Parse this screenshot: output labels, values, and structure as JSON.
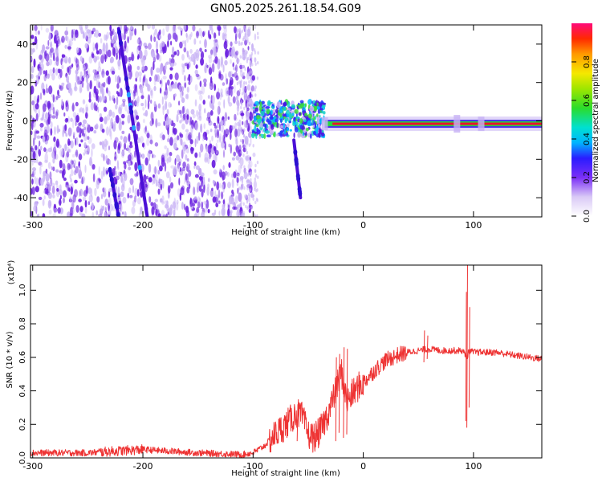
{
  "title": "GN05.2025.261.18.54.G09",
  "colors": {
    "spectrogram_main": "#6a1fe0",
    "spectrogram_faint": "#c9b4f5",
    "signal_line_core": "#e8132b",
    "signal_line_green": "#27d640",
    "snr_line": "#ee3333"
  },
  "chart_data": [
    {
      "type": "heatmap",
      "name": "spectrogram",
      "xlabel": "Height of straight line (km)",
      "ylabel": "Frequency (Hz)",
      "xlim": [
        -302,
        162
      ],
      "ylim": [
        -50,
        50
      ],
      "xticks": [
        -300,
        -200,
        -100,
        0,
        100
      ],
      "yticks": [
        -40,
        -20,
        0,
        20,
        40
      ],
      "colorbar": {
        "label": "Normalized spectral amplitude",
        "range": [
          0,
          1
        ],
        "ticks": [
          "0.0",
          "0.2",
          "0.4",
          "0.6",
          "0.8"
        ],
        "tick_values": [
          0.0,
          0.2,
          0.4,
          0.6,
          0.8
        ]
      },
      "features": [
        {
          "name": "noise-region",
          "x_range": [
            -302,
            -98
          ],
          "freq_range": [
            -50,
            50
          ],
          "amplitude": 0.15
        },
        {
          "name": "diagonal-track-main",
          "from": [
            -222,
            48
          ],
          "to": [
            -196,
            -50
          ],
          "amplitude": 0.25
        },
        {
          "name": "diagonal-track-secondary",
          "from": [
            -230,
            -25
          ],
          "to": [
            -222,
            -50
          ],
          "amplitude": 0.2
        },
        {
          "name": "short-track",
          "from": [
            -63,
            -10
          ],
          "to": [
            -57,
            -40
          ],
          "amplitude": 0.2
        },
        {
          "name": "onset-burst",
          "x_range": [
            -100,
            -35
          ],
          "freq_range": [
            -8,
            10
          ],
          "amplitude": 0.35
        },
        {
          "name": "signal-line",
          "x_range": [
            -35,
            162
          ],
          "frequency": -1.5,
          "amplitude": 0.9
        }
      ]
    },
    {
      "type": "line",
      "name": "snr",
      "xlabel": "Height of straight line (km)",
      "ylabel": "SNR (10 * v/v)",
      "yscale_label": "(x10⁴)",
      "xlim": [
        -302,
        162
      ],
      "ylim": [
        0,
        1.15
      ],
      "xticks": [
        -300,
        -200,
        -100,
        0,
        100
      ],
      "yticks": [
        0.0,
        0.2,
        0.4,
        0.6,
        0.8,
        1.0
      ],
      "ytick_labels": [
        "0.0",
        "0.2",
        "0.4",
        "0.6",
        "0.8",
        "1.0"
      ],
      "series": [
        {
          "name": "SNR",
          "x": [
            -302,
            -250,
            -200,
            -150,
            -110,
            -100,
            -90,
            -80,
            -70,
            -60,
            -55,
            -50,
            -45,
            -40,
            -35,
            -30,
            -25,
            -20,
            -15,
            -10,
            -5,
            0,
            10,
            20,
            30,
            40,
            50,
            60,
            70,
            80,
            90,
            94,
            96,
            100,
            110,
            120,
            140,
            162
          ],
          "values": [
            0.03,
            0.03,
            0.05,
            0.03,
            0.02,
            0.03,
            0.07,
            0.14,
            0.2,
            0.27,
            0.24,
            0.14,
            0.12,
            0.15,
            0.22,
            0.3,
            0.4,
            0.52,
            0.33,
            0.38,
            0.42,
            0.45,
            0.52,
            0.58,
            0.61,
            0.63,
            0.64,
            0.65,
            0.64,
            0.64,
            0.64,
            0.6,
            0.64,
            0.63,
            0.63,
            0.63,
            0.61,
            0.59
          ]
        }
      ],
      "spikes": [
        {
          "x": -60,
          "peak": 0.32,
          "trough": 0.1
        },
        {
          "x": -40,
          "peak": 0.21,
          "trough": 0.08
        },
        {
          "x": -25,
          "peak": 0.6,
          "trough": 0.1
        },
        {
          "x": -22,
          "peak": 0.62,
          "trough": 0.15
        },
        {
          "x": -18,
          "peak": 0.66,
          "trough": 0.12
        },
        {
          "x": -15,
          "peak": 0.65,
          "trough": 0.14
        },
        {
          "x": 55,
          "peak": 0.76,
          "trough": 0.57
        },
        {
          "x": 58,
          "peak": 0.73,
          "trough": 0.59
        },
        {
          "x": 93,
          "peak": 0.99,
          "trough": 0.22
        },
        {
          "x": 94,
          "peak": 1.18,
          "trough": 0.18
        },
        {
          "x": 96,
          "peak": 0.9,
          "trough": 0.3
        }
      ]
    }
  ]
}
